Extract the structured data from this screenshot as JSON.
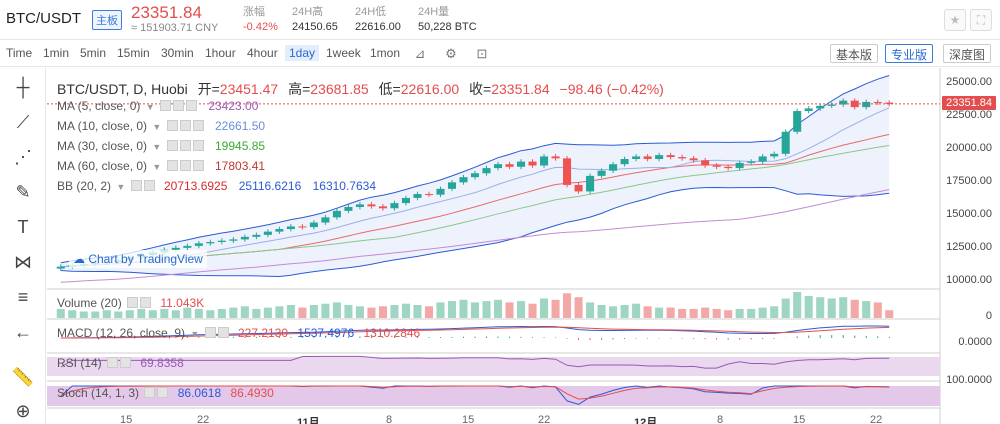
{
  "header": {
    "pair": "BTC/USDT",
    "pair_tag": "主板",
    "last_price": "23351.84",
    "cny_price": "≈ 151903.71 CNY",
    "stats": [
      {
        "label": "涨幅",
        "value": "-0.42%",
        "color": "#e44d4d"
      },
      {
        "label": "24H高",
        "value": "24150.65"
      },
      {
        "label": "24H低",
        "value": "22616.00"
      },
      {
        "label": "24H量",
        "value": "50,228 BTC"
      }
    ],
    "buttons": [
      {
        "icon": "star-icon",
        "glyph": "★"
      },
      {
        "icon": "fullscreen-icon",
        "glyph": "⛶"
      }
    ]
  },
  "toolbar": {
    "timeframes": [
      "Time",
      "1min",
      "5min",
      "15min",
      "30min",
      "1hour",
      "4hour",
      "1day",
      "1week",
      "1mon"
    ],
    "active_timeframe": "1day",
    "icons": [
      {
        "name": "candle-style-icon",
        "glyph": "⊿"
      },
      {
        "name": "indicators-icon",
        "glyph": "⚙"
      },
      {
        "name": "crosshair-icon",
        "glyph": "⊡"
      }
    ],
    "views": [
      "基本版",
      "专业版",
      "深度图"
    ],
    "active_view": "专业版"
  },
  "leftbar": {
    "tools": [
      {
        "name": "crosshair-tool-icon",
        "glyph": "┼"
      },
      {
        "name": "trendline-tool-icon",
        "glyph": "⟋"
      },
      {
        "name": "fib-tool-icon",
        "glyph": "⋰"
      },
      {
        "name": "brush-tool-icon",
        "glyph": "✎"
      },
      {
        "name": "text-tool-icon",
        "glyph": "T"
      },
      {
        "name": "pattern-tool-icon",
        "glyph": "⋈"
      },
      {
        "name": "measure-tool-icon",
        "glyph": "≡"
      },
      {
        "name": "back-arrow-icon",
        "glyph": "←"
      },
      {
        "name": "ruler-tool-icon",
        "glyph": "📏"
      },
      {
        "name": "zoom-in-tool-icon",
        "glyph": "⊕"
      }
    ]
  },
  "chart": {
    "ohlc": {
      "symbol": "BTC/USDT, D, Huobi",
      "open_label": "开=",
      "open": "23451.47",
      "high_label": "高=",
      "high": "23681.85",
      "low_label": "低=",
      "low": "22616.00",
      "close_label": "收=",
      "close": "23351.84",
      "change": "−98.46 (−0.42%)"
    },
    "indicators": [
      {
        "name": "MA (5, close, 0)",
        "values": [
          "23423.00"
        ],
        "colors": [
          "#9b59b6"
        ]
      },
      {
        "name": "MA (10, close, 0)",
        "values": [
          "22661.50"
        ],
        "colors": [
          "#6b8fd6"
        ]
      },
      {
        "name": "MA (30, close, 0)",
        "values": [
          "19945.85"
        ],
        "colors": [
          "#3aaa35"
        ]
      },
      {
        "name": "MA (60, close, 0)",
        "values": [
          "17803.41"
        ],
        "colors": [
          "#c0392b"
        ]
      },
      {
        "name": "BB (20, 2)",
        "values": [
          "20713.6925",
          "25116.6216",
          "16310.7634"
        ],
        "colors": [
          "#d62b2b",
          "#2a5ad6",
          "#2a5ad6"
        ]
      }
    ],
    "watermark": "Chart by TradingView",
    "price_tag": "23351.84",
    "y_axis": [
      "25000.00",
      "22500.00",
      "20000.00",
      "17500.00",
      "15000.00",
      "12500.00",
      "10000.00"
    ],
    "x_axis": [
      {
        "label": "15",
        "bold": false
      },
      {
        "label": "22",
        "bold": false
      },
      {
        "label": "11月",
        "bold": true
      },
      {
        "label": "8",
        "bold": false
      },
      {
        "label": "15",
        "bold": false
      },
      {
        "label": "22",
        "bold": false
      },
      {
        "label": "12月",
        "bold": true
      },
      {
        "label": "8",
        "bold": false
      },
      {
        "label": "15",
        "bold": false
      },
      {
        "label": "22",
        "bold": false
      }
    ],
    "volume": {
      "name": "Volume (20)",
      "value": "11.043K",
      "axis": "0"
    },
    "macd": {
      "name": "MACD (12, 26, close, 9)",
      "values": [
        "227.2130",
        "1537.4976",
        "1310.2846"
      ],
      "axis": "0.0000"
    },
    "rsi": {
      "name": "RSI (14)",
      "value": "69.8358",
      "axis": "100.0000"
    },
    "stoch": {
      "name": "Stoch (14, 1, 3)",
      "values": [
        "86.0618",
        "86.4930"
      ]
    }
  },
  "chart_data": {
    "type": "candlestick",
    "title": "BTC/USDT, D, Huobi",
    "ylim": [
      9000,
      25500
    ],
    "closes": [
      10800,
      10900,
      11000,
      11100,
      11150,
      11300,
      11500,
      11700,
      11900,
      12100,
      12250,
      12400,
      12600,
      12700,
      12800,
      12900,
      13100,
      13250,
      13500,
      13700,
      13900,
      13850,
      14200,
      14600,
      15100,
      15400,
      15600,
      15450,
      15300,
      15700,
      16100,
      16400,
      16350,
      16800,
      17300,
      17700,
      18000,
      18400,
      18700,
      18500,
      18900,
      18600,
      19300,
      19150,
      17100,
      16600,
      17800,
      18200,
      18700,
      19100,
      19300,
      19100,
      19400,
      19250,
      19150,
      19000,
      18600,
      18500,
      18400,
      18800,
      18900,
      19300,
      19500,
      21200,
      22800,
      23000,
      23200,
      23300,
      23600,
      23100,
      23500,
      23450,
      23352
    ],
    "volume": [
      0.7,
      0.6,
      0.5,
      0.5,
      0.6,
      0.5,
      0.6,
      0.7,
      0.6,
      0.7,
      0.6,
      0.8,
      0.7,
      0.6,
      0.7,
      0.8,
      0.9,
      0.7,
      0.8,
      0.9,
      1.0,
      0.8,
      1.0,
      1.1,
      1.2,
      1.0,
      0.9,
      0.8,
      0.9,
      1.0,
      1.1,
      1.0,
      0.9,
      1.2,
      1.3,
      1.4,
      1.2,
      1.3,
      1.4,
      1.2,
      1.3,
      1.1,
      1.5,
      1.4,
      1.9,
      1.6,
      1.2,
      1.0,
      0.9,
      1.0,
      1.1,
      0.9,
      0.8,
      0.8,
      0.7,
      0.7,
      0.8,
      0.7,
      0.6,
      0.7,
      0.7,
      0.8,
      0.9,
      1.5,
      2.0,
      1.7,
      1.6,
      1.5,
      1.6,
      1.4,
      1.3,
      1.2,
      0.6
    ]
  }
}
